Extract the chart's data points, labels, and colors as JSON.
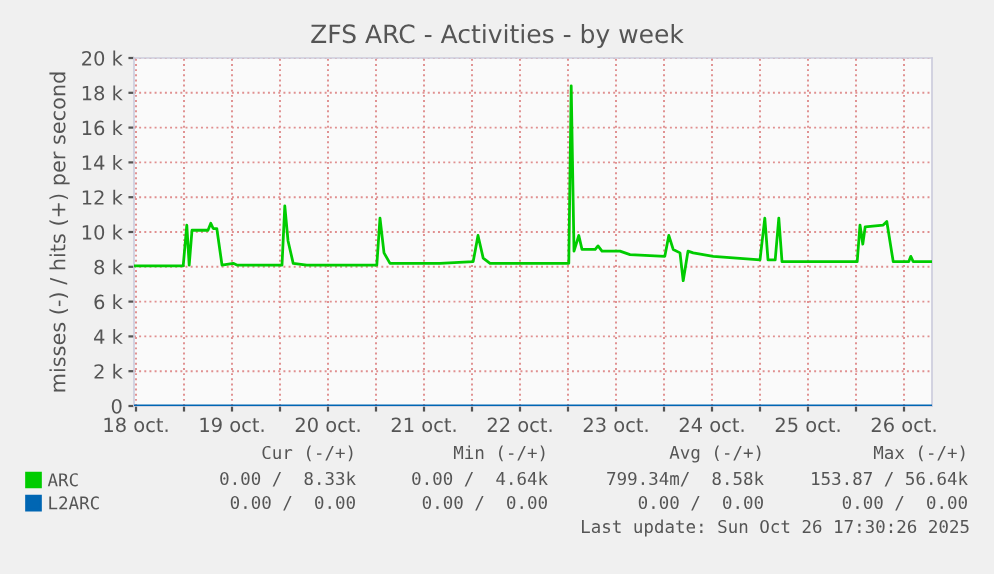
{
  "chart_data": {
    "type": "line",
    "title": "ZFS ARC - Activities - by week",
    "ylabel": "misses (-) / hits (+) per second",
    "series": [
      {
        "name": "ARC",
        "color": "#00cc00",
        "x": [
          "2025-10-18T11:42",
          "2025-10-18T23:48",
          "2025-10-19T00:42",
          "2025-10-19T01:18",
          "2025-10-19T02:00",
          "2025-10-19T06:00",
          "2025-10-19T06:42",
          "2025-10-19T07:18",
          "2025-10-19T08:12",
          "2025-10-19T09:30",
          "2025-10-19T12:18",
          "2025-10-19T13:12",
          "2025-10-20T00:30",
          "2025-10-20T01:12",
          "2025-10-20T02:00",
          "2025-10-20T03:18",
          "2025-10-20T06:42",
          "2025-10-21T00:12",
          "2025-10-21T01:00",
          "2025-10-21T02:00",
          "2025-10-21T03:30",
          "2025-10-21T06:48",
          "2025-10-21T16:00",
          "2025-10-22T00:18",
          "2025-10-22T01:30",
          "2025-10-22T02:48",
          "2025-10-22T04:30",
          "2025-10-23T00:12",
          "2025-10-23T00:48",
          "2025-10-23T01:30",
          "2025-10-23T02:42",
          "2025-10-23T03:30",
          "2025-10-23T06:48",
          "2025-10-23T07:30",
          "2025-10-23T08:30",
          "2025-10-23T13:00",
          "2025-10-23T15:30",
          "2025-10-24T00:12",
          "2025-10-24T01:12",
          "2025-10-24T02:18",
          "2025-10-24T04:00",
          "2025-10-24T04:48",
          "2025-10-24T06:00",
          "2025-10-24T07:18",
          "2025-10-24T12:18",
          "2025-10-25T00:00",
          "2025-10-25T01:12",
          "2025-10-25T02:00",
          "2025-10-25T03:48",
          "2025-10-25T04:42",
          "2025-10-25T05:30",
          "2025-10-26T00:18",
          "2025-10-26T01:00",
          "2025-10-26T01:42",
          "2025-10-26T02:18",
          "2025-10-26T06:48",
          "2025-10-26T07:42",
          "2025-10-26T09:18",
          "2025-10-26T13:12",
          "2025-10-26T13:42",
          "2025-10-26T14:18",
          "2025-10-26T18:48"
        ],
        "values": [
          8050,
          8050,
          10400,
          8100,
          10100,
          10100,
          10500,
          10200,
          10200,
          8100,
          8200,
          8100,
          8100,
          11500,
          9500,
          8200,
          8100,
          8100,
          10800,
          8800,
          8200,
          8200,
          8200,
          8300,
          9800,
          8500,
          8200,
          8200,
          18400,
          8900,
          9800,
          9000,
          9000,
          9200,
          8900,
          8900,
          8700,
          8600,
          9800,
          9000,
          8800,
          7200,
          8900,
          8800,
          8600,
          8400,
          10800,
          8400,
          8400,
          10800,
          8300,
          8300,
          10400,
          9300,
          10300,
          10400,
          10600,
          8300,
          8300,
          8600,
          8300,
          8300
        ]
      },
      {
        "name": "L2ARC",
        "color": "#0066b3",
        "x": [
          "2025-10-18T11:42",
          "2025-10-26T18:48"
        ],
        "values": [
          0,
          0
        ]
      }
    ],
    "xlim": [
      "2025-10-18T11:30",
      "2025-10-26T19:00"
    ],
    "xticks": [
      {
        "value": "2025-10-18T12:00",
        "label": "18 oct."
      },
      {
        "value": "2025-10-19T12:00",
        "label": "19 oct."
      },
      {
        "value": "2025-10-20T12:00",
        "label": "20 oct."
      },
      {
        "value": "2025-10-21T12:00",
        "label": "21 oct."
      },
      {
        "value": "2025-10-22T12:00",
        "label": "22 oct."
      },
      {
        "value": "2025-10-23T12:00",
        "label": "23 oct."
      },
      {
        "value": "2025-10-24T12:00",
        "label": "24 oct."
      },
      {
        "value": "2025-10-25T12:00",
        "label": "25 oct."
      },
      {
        "value": "2025-10-26T12:00",
        "label": "26 oct."
      },
      {
        "value": "2025-10-19T00:00",
        "label": null
      },
      {
        "value": "2025-10-20T00:00",
        "label": null
      },
      {
        "value": "2025-10-21T00:00",
        "label": null
      },
      {
        "value": "2025-10-22T00:00",
        "label": null
      },
      {
        "value": "2025-10-23T00:00",
        "label": null
      },
      {
        "value": "2025-10-24T00:00",
        "label": null
      },
      {
        "value": "2025-10-25T00:00",
        "label": null
      },
      {
        "value": "2025-10-26T00:00",
        "label": null
      }
    ],
    "ylim": [
      0,
      20000
    ],
    "yticks": [
      0,
      {
        "value": 2000,
        "label": "2 k"
      },
      {
        "value": 4000,
        "label": "4 k"
      },
      {
        "value": 6000,
        "label": "6 k"
      },
      {
        "value": 8000,
        "label": "8 k"
      },
      {
        "value": 10000,
        "label": "10 k"
      },
      {
        "value": 12000,
        "label": "12 k"
      },
      {
        "value": 14000,
        "label": "14 k"
      },
      {
        "value": 16000,
        "label": "16 k"
      },
      {
        "value": 18000,
        "label": "18 k"
      },
      {
        "value": 20000,
        "label": "20 k"
      }
    ],
    "grid": true,
    "legend": "bottom left",
    "annotations": [
      "Cur (-/+)",
      "Min (-/+)",
      "Avg (-/+)",
      "Max (-/+)",
      "0.00 /  8.33k",
      "0.00 /  4.64k",
      "799.34m/  8.58k",
      "153.87 / 56.64k",
      "0.00 /  0.00",
      "0.00 /  0.00",
      "0.00 /  0.00",
      "0.00 /  0.00",
      "Last update: Sun Oct 26 17:30:26 2025"
    ]
  }
}
